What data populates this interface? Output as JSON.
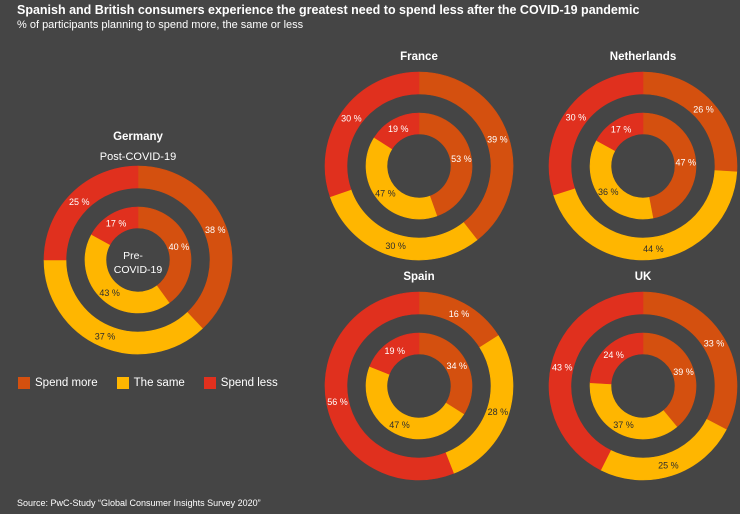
{
  "title": "Spanish and British consumers experience the greatest need to spend less after the COVID-19 pandemic",
  "subtitle": "% of participants planning to spend more, the same or less",
  "source": "Source: PwC-Study “Global Consumer Insights Survey 2020”",
  "legend": [
    {
      "label": "Spend more",
      "color": "#D4500F"
    },
    {
      "label": "The same",
      "color": "#FFB600"
    },
    {
      "label": "Spend less",
      "color": "#E0301E"
    }
  ],
  "germany_labels": {
    "outer": "Post-COVID-19",
    "inner_line1": "Pre-",
    "inner_line2": "COVID-19"
  },
  "chart_data": {
    "type": "pie",
    "variant": "nested-donut",
    "series_names": [
      "Spend more",
      "The same",
      "Spend less"
    ],
    "colors": [
      "#D4500F",
      "#FFB600",
      "#E0301E"
    ],
    "rings": {
      "outer": "Post-COVID-19",
      "inner": "Pre-COVID-19"
    },
    "countries": [
      {
        "name": "Germany",
        "outer": [
          38,
          37,
          25
        ],
        "inner": [
          40,
          43,
          17
        ]
      },
      {
        "name": "France",
        "outer": [
          39,
          30,
          30
        ],
        "inner": [
          53,
          47,
          19
        ]
      },
      {
        "name": "Netherlands",
        "outer": [
          26,
          44,
          30
        ],
        "inner": [
          47,
          36,
          17
        ]
      },
      {
        "name": "Spain",
        "outer": [
          16,
          28,
          56
        ],
        "inner": [
          34,
          47,
          19
        ]
      },
      {
        "name": "UK",
        "outer": [
          33,
          25,
          43
        ],
        "inner": [
          39,
          37,
          24
        ]
      }
    ]
  }
}
